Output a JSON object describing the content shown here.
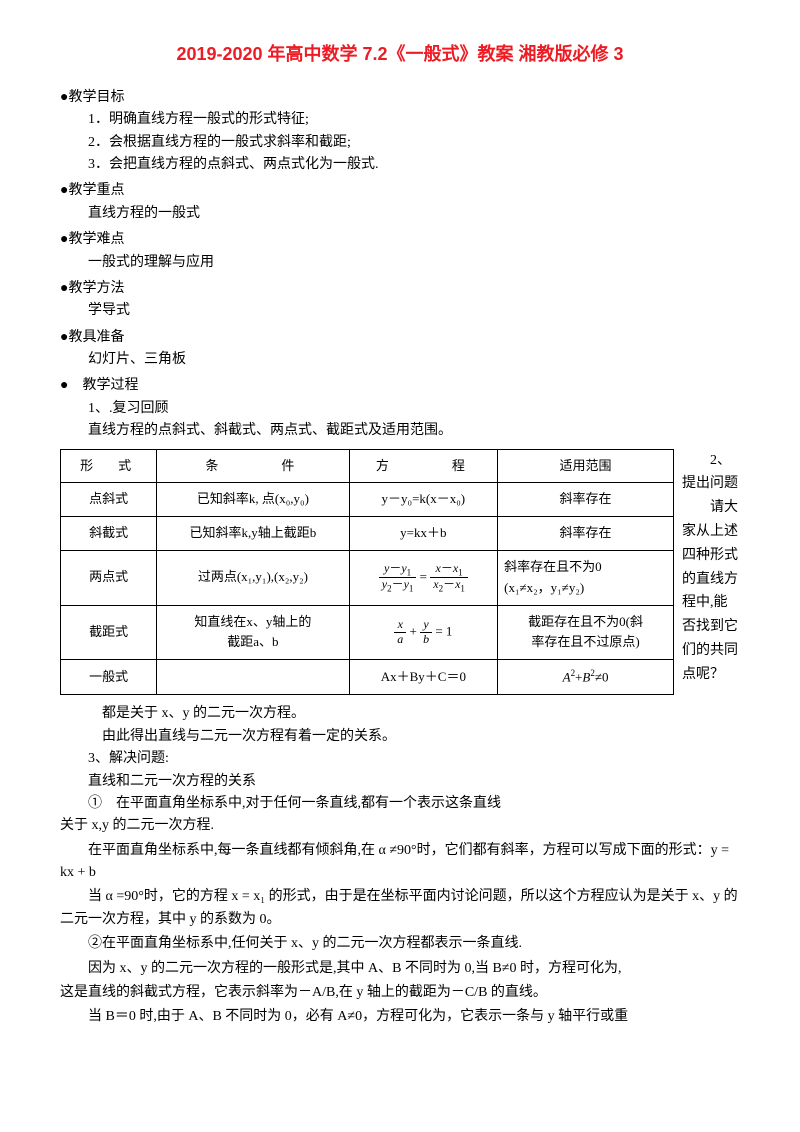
{
  "title": "2019-2020 年高中数学 7.2《一般式》教案 湘教版必修 3",
  "goals_head": "●教学目标",
  "goals": [
    "1．明确直线方程一般式的形式特征;",
    "2．会根据直线方程的一般式求斜率和截距;",
    "3．会把直线方程的点斜式、两点式化为一般式."
  ],
  "key_head": "●教学重点",
  "key_body": "直线方程的一般式",
  "hard_head": "●教学难点",
  "hard_body": "一般式的理解与应用",
  "method_head": "●教学方法",
  "method_body": "学导式",
  "prep_head": "●教具准备",
  "prep_body": "幻灯片、三角板",
  "proc_head": "●　教学过程",
  "proc1": "1、.复习回顾",
  "proc1_body": "直线方程的点斜式、斜截式、两点式、截距式及适用范围。",
  "headers": [
    "形　式",
    "条　　　件",
    "方　　　程",
    "适用范围"
  ],
  "rows": [
    {
      "c0": "点斜式",
      "c1": "已知斜率k, 点(x₀,y₀)",
      "c2": "y－y₀=k(x－x₀)",
      "c3": "斜率存在"
    },
    {
      "c0": "斜截式",
      "c1": "已知斜率k,y轴上截距b",
      "c2": "y=kx＋b",
      "c3": "斜率存在"
    },
    {
      "c0": "两点式",
      "c1": "过两点(x₁,y₁),(x₂,y₂)",
      "c3": "斜率存在且不为0\n(x₁≠x₂，y₁≠y₂)"
    },
    {
      "c0": "截距式",
      "c1": "知直线在x、y轴上的\n截距a、b",
      "c3": "截距存在且不为0(斜\n率存在且不过原点)"
    },
    {
      "c0": "一般式",
      "c1": "",
      "c2": "Ax＋By＋C＝0"
    }
  ],
  "side_a": "　　2、提出问题",
  "side_b": "　　请大家从上述四种形式的直线方程中,能否找到它们的共同点呢？",
  "ans1": "都是关于 x、y 的二元一次方程。",
  "ans2": "由此得出直线与二元一次方程有着一定的关系。",
  "proc3": "3、解决问题:",
  "proc3_a": "直线和二元一次方程的关系",
  "proc3_b": "①　在平面直角坐标系中,对于任何一条直线,都有一个表示这条直线",
  "proc3_c": "关于 x,y 的二元一次方程.",
  "para1": "在平面直角坐标系中,每一条直线都有倾斜角,在 α ≠90°时，它们都有斜率，方程可以写成下面的形式：y = kx + b",
  "para2": "当 α =90°时，它的方程 x = x₁ 的形式，由于是在坐标平面内讨论问题，所以这个方程应认为是关于 x、y 的二元一次方程，其中 y 的系数为 0。",
  "para3": "②在平面直角坐标系中,任何关于 x、y 的二元一次方程都表示一条直线.",
  "para4_a": "因为 x、y 的二元一次方程的一般形式是,其中 A、B 不同时为 0,当 B≠0 时，方程可化为,",
  "para4_b": "这是直线的斜截式方程，它表示斜率为－A/B,在 y 轴上的截距为－C/B 的直线。",
  "para5": "当 B＝0 时,由于 A、B 不同时为 0，必有 A≠0，方程可化为，它表示一条与 y 轴平行或重",
  "colors": {
    "title": "#ed1c24",
    "text": "#000000",
    "bg": "#ffffff",
    "border": "#000000"
  }
}
